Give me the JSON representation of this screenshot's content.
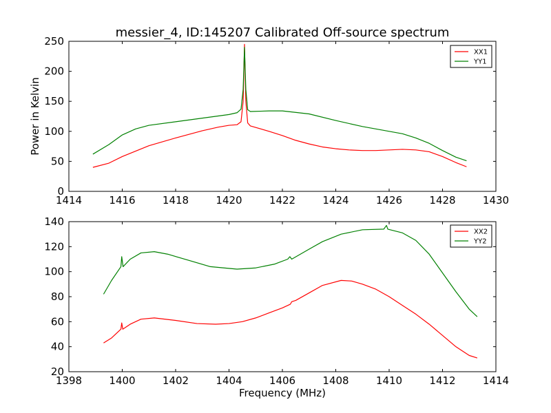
{
  "figure": {
    "title": "messier_4, ID:145207 Calibrated Off-source spectrum",
    "ylabel": "Power in Kelvin",
    "xlabel": "Frequency (MHz)"
  },
  "chart_data": [
    {
      "type": "line",
      "title": "messier_4, ID:145207 Calibrated Off-source spectrum",
      "xlabel": "",
      "ylabel": "Power in Kelvin",
      "xlim": [
        1414,
        1430
      ],
      "ylim": [
        0,
        250
      ],
      "xticks": [
        1414,
        1416,
        1418,
        1420,
        1422,
        1424,
        1426,
        1428,
        1430
      ],
      "yticks": [
        0,
        50,
        100,
        150,
        200,
        250
      ],
      "grid": false,
      "legend": "top-right",
      "series": [
        {
          "name": "XX1",
          "color": "#ff0000",
          "points": [
            [
              1414.9,
              40
            ],
            [
              1415.5,
              47
            ],
            [
              1416,
              58
            ],
            [
              1416.5,
              67
            ],
            [
              1417,
              76
            ],
            [
              1418,
              89
            ],
            [
              1419,
              101
            ],
            [
              1419.6,
              107
            ],
            [
              1420,
              110
            ],
            [
              1420.3,
              111
            ],
            [
              1420.45,
              116
            ],
            [
              1420.53,
              150
            ],
            [
              1420.58,
              245
            ],
            [
              1420.63,
              150
            ],
            [
              1420.7,
              114
            ],
            [
              1420.8,
              109
            ],
            [
              1421.5,
              100
            ],
            [
              1422,
              93
            ],
            [
              1422.5,
              85
            ],
            [
              1423,
              79
            ],
            [
              1423.5,
              74
            ],
            [
              1424,
              71
            ],
            [
              1424.5,
              69
            ],
            [
              1425,
              68
            ],
            [
              1425.5,
              68
            ],
            [
              1426,
              69
            ],
            [
              1426.5,
              70
            ],
            [
              1427,
              69
            ],
            [
              1427.5,
              66
            ],
            [
              1428,
              58
            ],
            [
              1428.5,
              48
            ],
            [
              1428.9,
              41
            ]
          ]
        },
        {
          "name": "YY1",
          "color": "#008000",
          "points": [
            [
              1414.9,
              62
            ],
            [
              1415.5,
              78
            ],
            [
              1416,
              94
            ],
            [
              1416.5,
              104
            ],
            [
              1417,
              110
            ],
            [
              1418,
              116
            ],
            [
              1419,
              122
            ],
            [
              1420,
              128
            ],
            [
              1420.3,
              131
            ],
            [
              1420.45,
              137
            ],
            [
              1420.53,
              170
            ],
            [
              1420.58,
              240
            ],
            [
              1420.63,
              170
            ],
            [
              1420.7,
              136
            ],
            [
              1420.8,
              133
            ],
            [
              1421.5,
              134
            ],
            [
              1422,
              134
            ],
            [
              1423,
              129
            ],
            [
              1424,
              118
            ],
            [
              1425,
              108
            ],
            [
              1426,
              100
            ],
            [
              1426.5,
              96
            ],
            [
              1427,
              89
            ],
            [
              1427.5,
              80
            ],
            [
              1428,
              68
            ],
            [
              1428.5,
              57
            ],
            [
              1428.9,
              51
            ]
          ]
        }
      ]
    },
    {
      "type": "line",
      "title": "",
      "xlabel": "Frequency (MHz)",
      "ylabel": "",
      "xlim": [
        1398,
        1414
      ],
      "ylim": [
        20,
        140
      ],
      "xticks": [
        1398,
        1400,
        1402,
        1404,
        1406,
        1408,
        1410,
        1412,
        1414
      ],
      "yticks": [
        20,
        40,
        60,
        80,
        100,
        120,
        140
      ],
      "grid": false,
      "legend": "top-right",
      "series": [
        {
          "name": "XX2",
          "color": "#ff0000",
          "points": [
            [
              1399.3,
              43
            ],
            [
              1399.6,
              47
            ],
            [
              1399.95,
              54
            ],
            [
              1399.98,
              59
            ],
            [
              1400.02,
              54
            ],
            [
              1400.3,
              58
            ],
            [
              1400.7,
              62
            ],
            [
              1401.2,
              63
            ],
            [
              1402,
              61
            ],
            [
              1402.8,
              58.5
            ],
            [
              1403.5,
              58
            ],
            [
              1404,
              58.5
            ],
            [
              1404.5,
              60
            ],
            [
              1405,
              63
            ],
            [
              1405.5,
              67
            ],
            [
              1406,
              71
            ],
            [
              1406.3,
              74
            ],
            [
              1406.35,
              76
            ],
            [
              1406.5,
              77
            ],
            [
              1407,
              83
            ],
            [
              1407.5,
              89
            ],
            [
              1408.2,
              93
            ],
            [
              1408.6,
              92.5
            ],
            [
              1409,
              90
            ],
            [
              1409.5,
              86
            ],
            [
              1410,
              80
            ],
            [
              1410.5,
              73
            ],
            [
              1411,
              66
            ],
            [
              1411.5,
              58
            ],
            [
              1412,
              49
            ],
            [
              1412.5,
              40
            ],
            [
              1413,
              33
            ],
            [
              1413.3,
              31
            ]
          ]
        },
        {
          "name": "YY2",
          "color": "#008000",
          "points": [
            [
              1399.3,
              82
            ],
            [
              1399.6,
              93
            ],
            [
              1399.95,
              104
            ],
            [
              1399.98,
              112
            ],
            [
              1400.03,
              104
            ],
            [
              1400.3,
              110
            ],
            [
              1400.7,
              115
            ],
            [
              1401.2,
              116
            ],
            [
              1401.7,
              114
            ],
            [
              1402.5,
              109
            ],
            [
              1403.3,
              104
            ],
            [
              1404.3,
              102
            ],
            [
              1405,
              103
            ],
            [
              1405.7,
              106
            ],
            [
              1406.2,
              110
            ],
            [
              1406.28,
              112
            ],
            [
              1406.35,
              110
            ],
            [
              1407,
              118
            ],
            [
              1407.5,
              124
            ],
            [
              1408.2,
              130
            ],
            [
              1409,
              133.5
            ],
            [
              1409.8,
              134
            ],
            [
              1409.9,
              137
            ],
            [
              1409.95,
              134
            ],
            [
              1410.5,
              131
            ],
            [
              1411,
              125
            ],
            [
              1411.5,
              114
            ],
            [
              1412,
              99
            ],
            [
              1412.5,
              84
            ],
            [
              1413,
              70
            ],
            [
              1413.3,
              64
            ]
          ]
        }
      ]
    }
  ]
}
